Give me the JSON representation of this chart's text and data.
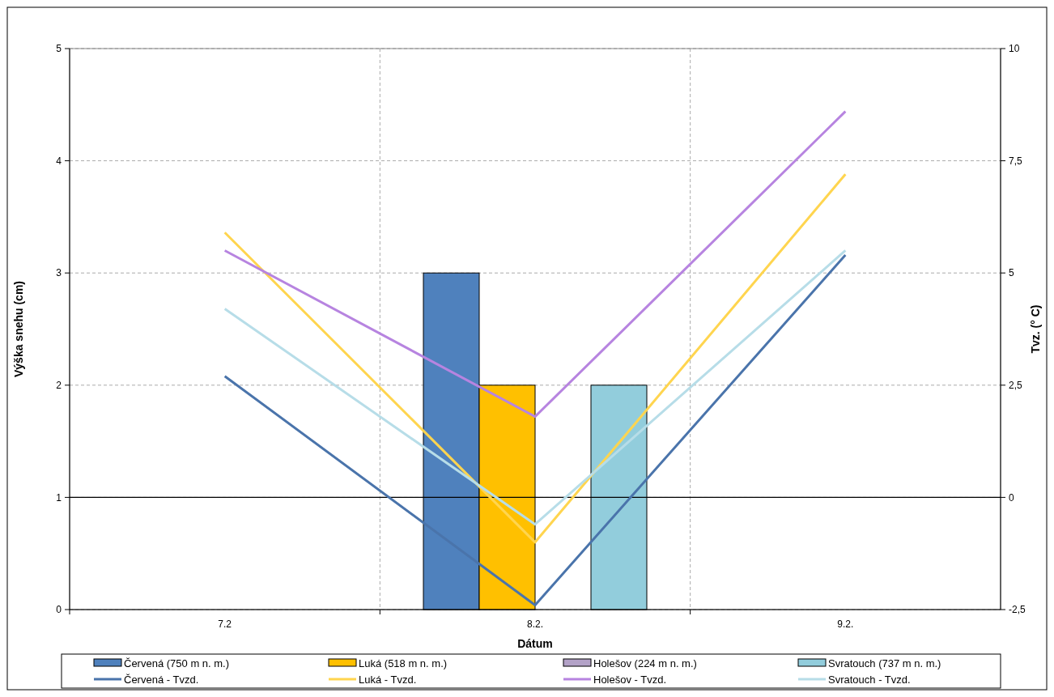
{
  "chart_data": {
    "type": "bar",
    "xlabel": "Dátum",
    "ylabel": "Výška snehu (cm)",
    "y2label": "Tvz. (° C)",
    "categories": [
      "7.2",
      "8.2.",
      "9.2."
    ],
    "series": [
      {
        "name": "Červená (750 m n. m.)",
        "color": "#4f81bd",
        "values": [
          null,
          3,
          null
        ]
      },
      {
        "name": "Luká (518 m n. m.)",
        "color": "#ffc000",
        "values": [
          null,
          2,
          null
        ]
      },
      {
        "name": "Holešov (224 m n. m.)",
        "color": "#b3a2c7",
        "values": [
          null,
          null,
          null
        ]
      },
      {
        "name": "Svratouch (737 m n. m.)",
        "color": "#92cddc",
        "values": [
          null,
          2,
          null
        ]
      },
      {
        "name": "Červená - Tvzd.",
        "type": "line",
        "axis": "y2",
        "color": "#4a74ab",
        "values": [
          2.7,
          -2.4,
          5.4
        ]
      },
      {
        "name": "Luká - Tvzd.",
        "type": "line",
        "axis": "y2",
        "color": "#ffd54f",
        "values": [
          5.9,
          -1.0,
          7.2
        ]
      },
      {
        "name": "Holešov - Tvzd.",
        "type": "line",
        "axis": "y2",
        "color": "#b784e0",
        "values": [
          5.5,
          1.8,
          8.6
        ]
      },
      {
        "name": "Svratouch - Tvzd.",
        "type": "line",
        "axis": "y2",
        "color": "#b7dde8",
        "values": [
          4.2,
          -0.6,
          5.5
        ]
      }
    ],
    "ylim": [
      0,
      5
    ],
    "yticks": [
      0,
      1,
      2,
      3,
      4,
      5
    ],
    "y2lim": [
      -2.5,
      10
    ],
    "y2ticks": [
      {
        "value": -2.5,
        "label": "-2,5"
      },
      0,
      {
        "value": 2.5,
        "label": "2,5"
      },
      5,
      {
        "value": 7.5,
        "label": "7,5"
      },
      10
    ],
    "ref_lines": [
      {
        "axis": "y2",
        "value": 0,
        "color": "#000000"
      }
    ],
    "grid": true,
    "legend": "bottom",
    "line_style": "solid",
    "marker": "none"
  }
}
